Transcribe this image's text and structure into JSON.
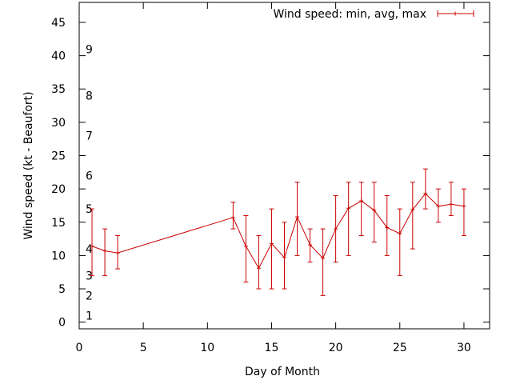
{
  "chart_data": {
    "type": "line",
    "title": "",
    "xlabel": "Day of Month",
    "ylabel": "Wind speed (kt - Beaufort)",
    "xlim": [
      0,
      32
    ],
    "ylim": [
      -1,
      48
    ],
    "x_ticks": [
      0,
      5,
      10,
      15,
      20,
      25,
      30
    ],
    "y_ticks": [
      0,
      5,
      10,
      15,
      20,
      25,
      30,
      35,
      40,
      45
    ],
    "grid": false,
    "legend_position": "top-right",
    "beaufort_labels": [
      {
        "label": "1",
        "value": 1
      },
      {
        "label": "2",
        "value": 4
      },
      {
        "label": "3",
        "value": 7
      },
      {
        "label": "4",
        "value": 11
      },
      {
        "label": "5",
        "value": 17
      },
      {
        "label": "6",
        "value": 22
      },
      {
        "label": "7",
        "value": 28
      },
      {
        "label": "8",
        "value": 34
      },
      {
        "label": "9",
        "value": 41
      }
    ],
    "series": [
      {
        "name": "Wind speed: min, avg, max",
        "color": "#cc0000",
        "points": [
          {
            "x": 1,
            "y": 11.4,
            "min": 7,
            "max": 17
          },
          {
            "x": 2,
            "y": 10.7,
            "min": 7,
            "max": 14
          },
          {
            "x": 3,
            "y": 10.4,
            "min": 8,
            "max": 13
          },
          {
            "x": 12,
            "y": 15.7,
            "min": 14,
            "max": 18
          },
          {
            "x": 13,
            "y": 11.4,
            "min": 6,
            "max": 16
          },
          {
            "x": 14,
            "y": 8.1,
            "min": 5,
            "max": 13
          },
          {
            "x": 15,
            "y": 11.8,
            "min": 5,
            "max": 17
          },
          {
            "x": 16,
            "y": 9.7,
            "min": 5,
            "max": 15
          },
          {
            "x": 17,
            "y": 15.8,
            "min": 10,
            "max": 21
          },
          {
            "x": 18,
            "y": 11.6,
            "min": 9,
            "max": 14
          },
          {
            "x": 19,
            "y": 9.6,
            "min": 4,
            "max": 14
          },
          {
            "x": 20,
            "y": 14.0,
            "min": 9,
            "max": 19
          },
          {
            "x": 21,
            "y": 17.1,
            "min": 10,
            "max": 21
          },
          {
            "x": 22,
            "y": 18.2,
            "min": 13,
            "max": 21
          },
          {
            "x": 23,
            "y": 16.8,
            "min": 12,
            "max": 21
          },
          {
            "x": 24,
            "y": 14.2,
            "min": 10,
            "max": 19
          },
          {
            "x": 25,
            "y": 13.3,
            "min": 7,
            "max": 17
          },
          {
            "x": 26,
            "y": 16.9,
            "min": 11,
            "max": 21
          },
          {
            "x": 27,
            "y": 19.3,
            "min": 17,
            "max": 23
          },
          {
            "x": 28,
            "y": 17.4,
            "min": 15,
            "max": 20
          },
          {
            "x": 29,
            "y": 17.7,
            "min": 16,
            "max": 21
          },
          {
            "x": 30,
            "y": 17.4,
            "min": 13,
            "max": 20
          }
        ]
      }
    ]
  }
}
